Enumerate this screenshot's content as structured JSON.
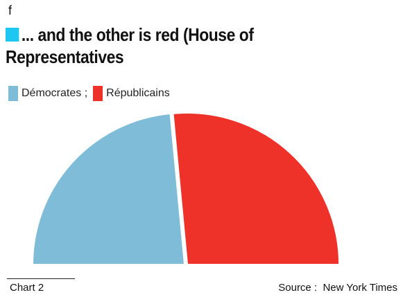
{
  "header": {
    "top_letter": "f",
    "title": "... and the other is red (House of Representatives",
    "marker_color": "#1ec6f2"
  },
  "legend": {
    "items": [
      {
        "label": "Démocrates ;",
        "color": "#7fbcd8"
      },
      {
        "label": "Républicains",
        "color": "#ee3129"
      }
    ]
  },
  "chart_data": {
    "type": "pie",
    "variant": "half-donut",
    "title": "... and the other is red (House of Representatives",
    "slices": [
      {
        "label": "Démocrates",
        "value": 47,
        "color": "#7fbcd8"
      },
      {
        "label": "Républicains",
        "value": 53,
        "color": "#ee3129"
      }
    ],
    "legend_position": "top-left",
    "grid": false
  },
  "footer": {
    "left": "Chart 2",
    "right": "Source :  New York Times"
  }
}
